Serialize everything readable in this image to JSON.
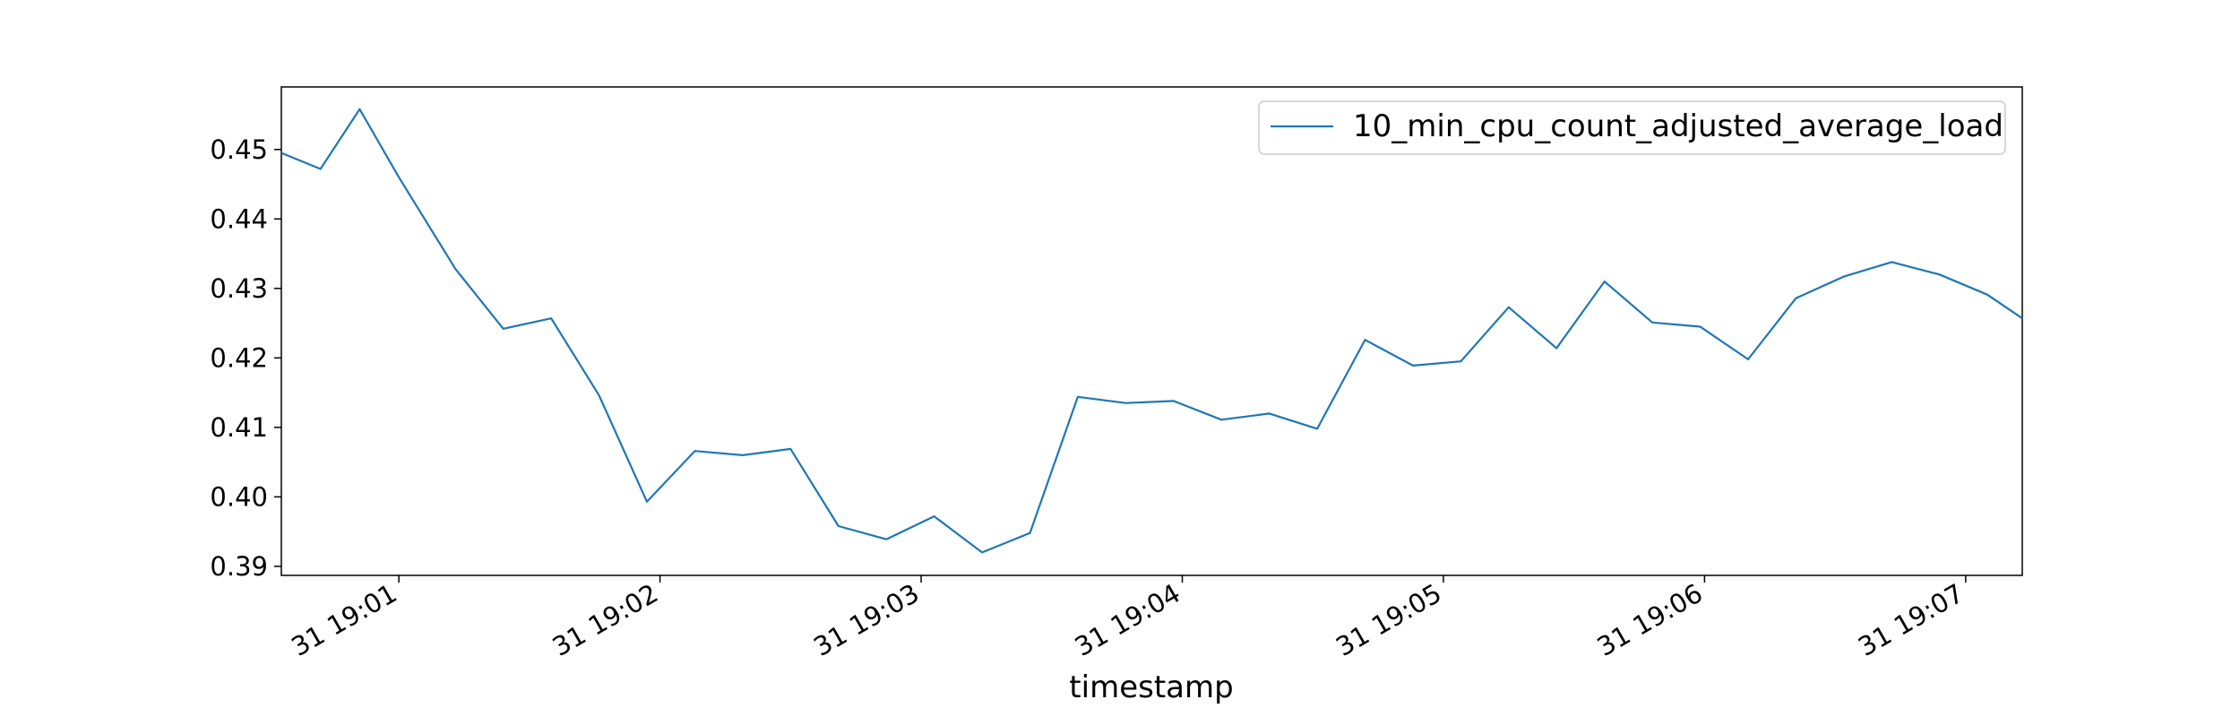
{
  "chart_data": {
    "type": "line",
    "title": "",
    "xlabel": "timestamp",
    "ylabel": "",
    "ylim": [
      0.3887,
      0.459
    ],
    "xlim": [
      "19:00:33",
      "19:07:13"
    ],
    "grid": false,
    "legend_position": "top-right",
    "x_ticks": [
      "19:01:00",
      "19:02:00",
      "19:03:00",
      "19:04:00",
      "19:05:00",
      "19:06:00",
      "19:07:00"
    ],
    "x_tick_labels": [
      "31 19:01",
      "31 19:02",
      "31 19:03",
      "31 19:04",
      "31 19:05",
      "31 19:06",
      "31 19:07"
    ],
    "y_ticks": [
      0.39,
      0.4,
      0.41,
      0.42,
      0.43,
      0.44,
      0.45
    ],
    "y_tick_labels": [
      "0.39",
      "0.40",
      "0.41",
      "0.42",
      "0.43",
      "0.44",
      "0.45"
    ],
    "series": [
      {
        "name": "10_min_cpu_count_adjusted_average_load",
        "color": "#1f77b4",
        "x": [
          "19:00:33",
          "19:00:42",
          "19:00:51",
          "19:01:00",
          "19:01:13",
          "19:01:24",
          "19:01:35",
          "19:01:46",
          "19:01:57",
          "19:02:08",
          "19:02:19",
          "19:02:30",
          "19:02:41",
          "19:02:52",
          "19:03:03",
          "19:03:14",
          "19:03:25",
          "19:03:36",
          "19:03:47",
          "19:03:58",
          "19:04:09",
          "19:04:20",
          "19:04:31",
          "19:04:42",
          "19:04:53",
          "19:05:04",
          "19:05:15",
          "19:05:26",
          "19:05:37",
          "19:05:48",
          "19:05:59",
          "19:06:10",
          "19:06:21",
          "19:06:32",
          "19:06:43",
          "19:06:54",
          "19:07:05",
          "19:07:13"
        ],
        "values": [
          0.4495,
          0.4472,
          0.4558,
          0.446,
          0.4328,
          0.4242,
          0.4257,
          0.4146,
          0.3993,
          0.4066,
          0.406,
          0.4069,
          0.3958,
          0.3939,
          0.3972,
          0.392,
          0.3948,
          0.4144,
          0.4135,
          0.4138,
          0.4111,
          0.412,
          0.4098,
          0.4226,
          0.4189,
          0.4195,
          0.4273,
          0.4214,
          0.431,
          0.4251,
          0.4245,
          0.4198,
          0.4286,
          0.4317,
          0.4338,
          0.432,
          0.4291,
          0.4257
        ]
      }
    ]
  }
}
